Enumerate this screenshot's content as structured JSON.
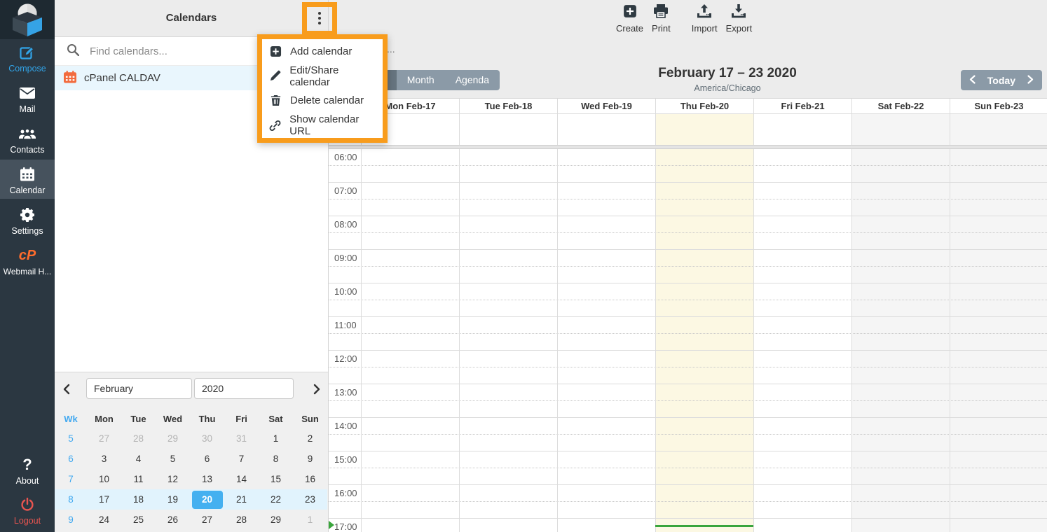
{
  "sidebar": {
    "items": [
      {
        "id": "compose",
        "label": "Compose"
      },
      {
        "id": "mail",
        "label": "Mail"
      },
      {
        "id": "contacts",
        "label": "Contacts"
      },
      {
        "id": "calendar",
        "label": "Calendar",
        "active": true
      },
      {
        "id": "settings",
        "label": "Settings"
      },
      {
        "id": "webmail-home",
        "label": "Webmail H..."
      },
      {
        "id": "about",
        "label": "About"
      },
      {
        "id": "logout",
        "label": "Logout"
      }
    ]
  },
  "calendars_panel": {
    "title": "Calendars",
    "search_placeholder": "Find calendars...",
    "calendars": [
      {
        "name": "cPanel CALDAV",
        "selected": true
      }
    ]
  },
  "context_menu": {
    "items": [
      {
        "icon": "add-icon",
        "label": "Add calendar"
      },
      {
        "icon": "edit-icon",
        "label": "Edit/Share calendar"
      },
      {
        "icon": "delete-icon",
        "label": "Delete calendar"
      },
      {
        "icon": "link-icon",
        "label": "Show calendar URL"
      }
    ]
  },
  "toolbar": {
    "buttons": [
      {
        "id": "create",
        "label": "Create"
      },
      {
        "id": "print",
        "label": "Print"
      },
      {
        "id": "import",
        "label": "Import"
      },
      {
        "id": "export",
        "label": "Export"
      }
    ]
  },
  "calendar_header": {
    "search_tail": "...",
    "views": [
      {
        "label": "ek",
        "active": true
      },
      {
        "label": "Month",
        "active": false
      },
      {
        "label": "Agenda",
        "active": false
      }
    ],
    "title": "February 17 – 23 2020",
    "timezone": "America/Chicago",
    "today_label": "Today"
  },
  "week_view": {
    "days": [
      {
        "label": "Mon Feb-17"
      },
      {
        "label": "Tue Feb-18"
      },
      {
        "label": "Wed Feb-19"
      },
      {
        "label": "Thu Feb-20",
        "today": true
      },
      {
        "label": "Fri Feb-21"
      },
      {
        "label": "Sat Feb-22",
        "weekend": true
      },
      {
        "label": "Sun Feb-23",
        "weekend": true
      }
    ],
    "hours": [
      "06:00",
      "07:00",
      "08:00",
      "09:00",
      "10:00",
      "11:00",
      "12:00",
      "13:00",
      "14:00",
      "15:00",
      "16:00",
      "17:00"
    ]
  },
  "mini_calendar": {
    "month": "February",
    "year": "2020",
    "weekdays": [
      "Wk",
      "Mon",
      "Tue",
      "Wed",
      "Thu",
      "Fri",
      "Sat",
      "Sun"
    ],
    "weeks": [
      {
        "num": "5",
        "days": [
          {
            "d": "27",
            "muted": true
          },
          {
            "d": "28",
            "muted": true
          },
          {
            "d": "29",
            "muted": true
          },
          {
            "d": "30",
            "muted": true
          },
          {
            "d": "31",
            "muted": true
          },
          {
            "d": "1"
          },
          {
            "d": "2"
          }
        ]
      },
      {
        "num": "6",
        "days": [
          {
            "d": "3"
          },
          {
            "d": "4"
          },
          {
            "d": "5"
          },
          {
            "d": "6"
          },
          {
            "d": "7"
          },
          {
            "d": "8"
          },
          {
            "d": "9"
          }
        ]
      },
      {
        "num": "7",
        "days": [
          {
            "d": "10"
          },
          {
            "d": "11"
          },
          {
            "d": "12"
          },
          {
            "d": "13"
          },
          {
            "d": "14"
          },
          {
            "d": "15"
          },
          {
            "d": "16"
          }
        ]
      },
      {
        "num": "8",
        "current": true,
        "days": [
          {
            "d": "17"
          },
          {
            "d": "18"
          },
          {
            "d": "19"
          },
          {
            "d": "20",
            "selected": true
          },
          {
            "d": "21"
          },
          {
            "d": "22"
          },
          {
            "d": "23"
          }
        ]
      },
      {
        "num": "9",
        "days": [
          {
            "d": "24"
          },
          {
            "d": "25"
          },
          {
            "d": "26"
          },
          {
            "d": "27"
          },
          {
            "d": "28"
          },
          {
            "d": "29"
          },
          {
            "d": "1",
            "muted": true
          }
        ]
      }
    ]
  },
  "colors": {
    "annotation_orange": "#f89c1c",
    "accent_blue": "#44b0f0",
    "selected_week_bg": "#e1f3fd",
    "selected_calendar_bg": "#e9f6fd",
    "sidebar_bg": "#2b3741",
    "sidebar_active_bg": "#46525d",
    "header_gray": "#ececec",
    "button_slate": "#8b9aa7",
    "button_slate_active": "#66747f",
    "today_column_bg": "#fcf8e3",
    "weekend_column_bg": "#f5f5f5",
    "now_indicator_green": "#3aa53c",
    "cpanel_orange": "#ff6c2c",
    "logout_red": "#e85550",
    "calendar_icon_orange": "#f26b3e",
    "compose_blue": "#31a4e8"
  }
}
